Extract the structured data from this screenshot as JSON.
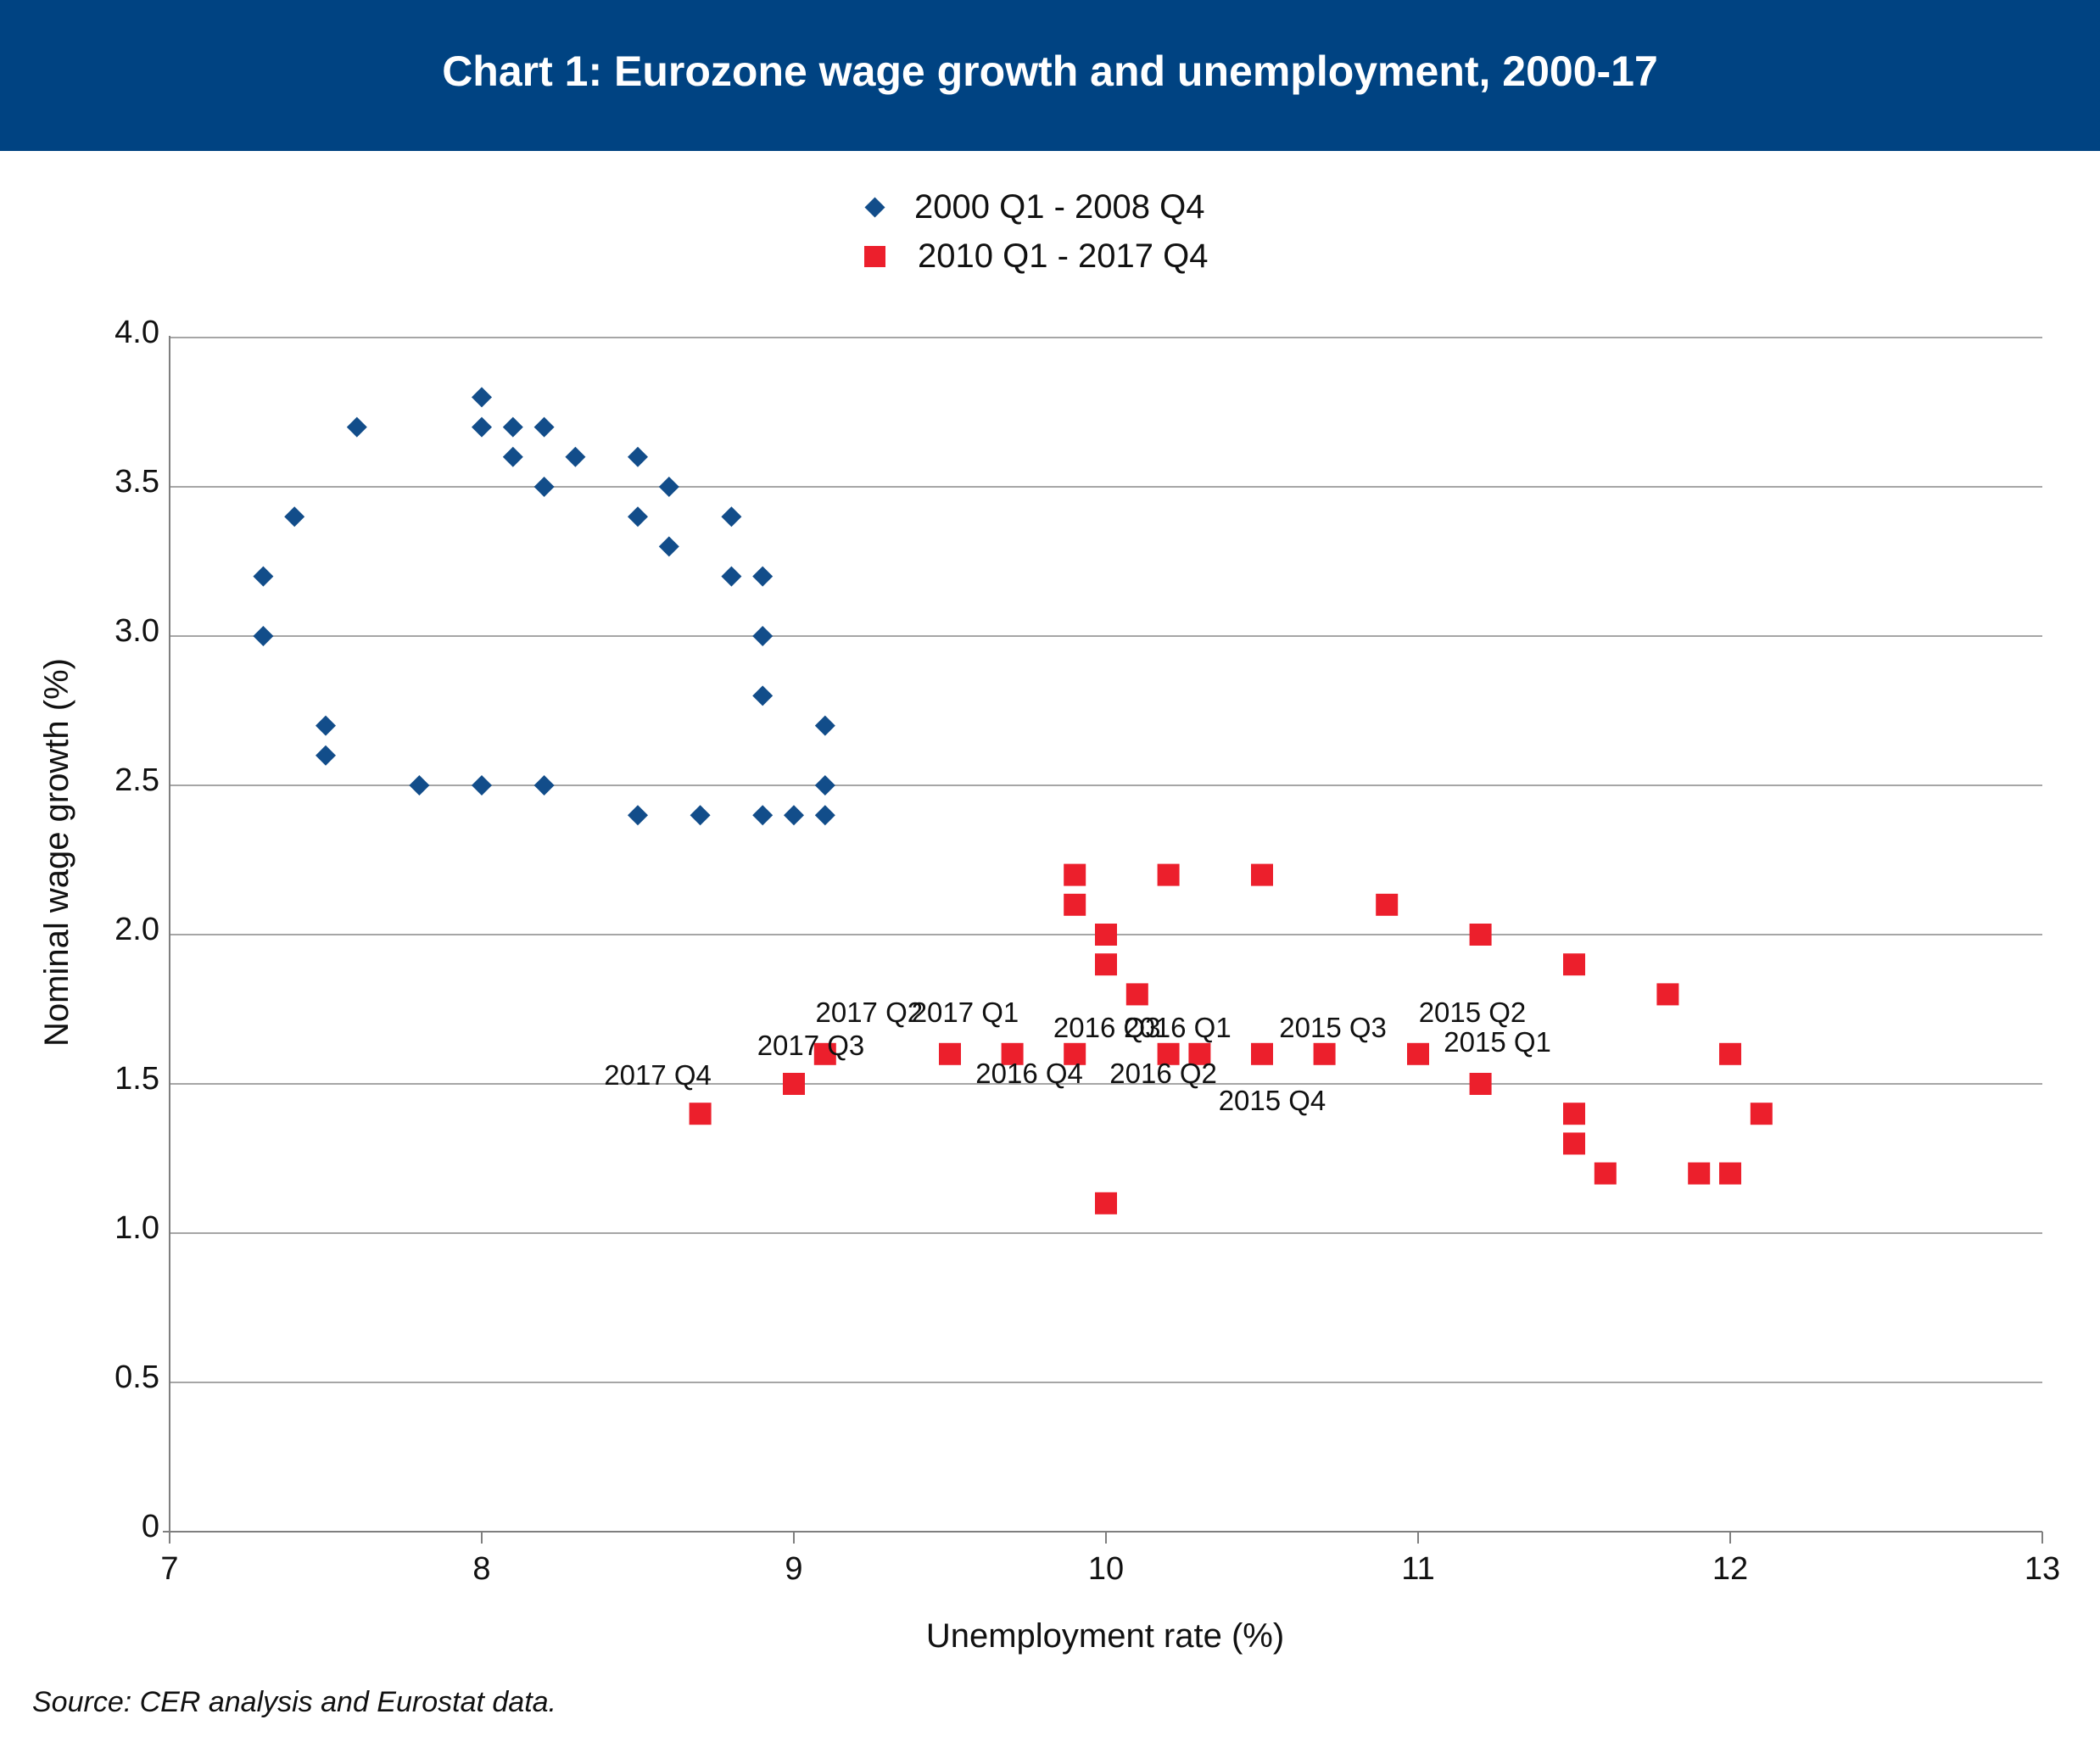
{
  "header": {
    "title": "Chart 1: Eurozone wage growth and unemployment, 2000-17"
  },
  "source": "Source: CER analysis and Eurostat data.",
  "colors": {
    "header_bg": "#004382",
    "series1": "#124d8a",
    "series2": "#ec1f2c",
    "grid": "#a6a6a6"
  },
  "chart_data": {
    "type": "scatter",
    "title": "Chart 1: Eurozone wage growth and unemployment, 2000-17",
    "xlabel": "Unemployment rate (%)",
    "ylabel": "Nominal wage growth (%)",
    "xlim": [
      7,
      13
    ],
    "ylim": [
      0,
      4.0
    ],
    "x_ticks": [
      "7",
      "8",
      "9",
      "10",
      "11",
      "12",
      "13"
    ],
    "y_ticks": [
      "0",
      "0.5",
      "1.0",
      "1.5",
      "2.0",
      "2.5",
      "3.0",
      "3.5",
      "4.0"
    ],
    "grid": "horizontal",
    "legend_position": "top-center",
    "series": [
      {
        "name": "2000 Q1 - 2008 Q4",
        "marker": "diamond",
        "color": "#124d8a",
        "points": [
          [
            7.3,
            3.2
          ],
          [
            7.3,
            3.0
          ],
          [
            7.4,
            3.4
          ],
          [
            7.5,
            2.7
          ],
          [
            7.5,
            2.6
          ],
          [
            7.6,
            3.7
          ],
          [
            7.8,
            2.5
          ],
          [
            8.0,
            3.8
          ],
          [
            8.0,
            3.7
          ],
          [
            8.0,
            2.5
          ],
          [
            8.1,
            3.7
          ],
          [
            8.1,
            3.6
          ],
          [
            8.2,
            3.7
          ],
          [
            8.2,
            3.5
          ],
          [
            8.2,
            2.5
          ],
          [
            8.3,
            3.6
          ],
          [
            8.5,
            3.6
          ],
          [
            8.5,
            3.4
          ],
          [
            8.5,
            2.4
          ],
          [
            8.6,
            3.5
          ],
          [
            8.6,
            3.3
          ],
          [
            8.7,
            2.4
          ],
          [
            8.8,
            3.4
          ],
          [
            8.8,
            3.2
          ],
          [
            8.9,
            3.2
          ],
          [
            8.9,
            3.0
          ],
          [
            8.9,
            2.8
          ],
          [
            8.9,
            2.4
          ],
          [
            9.0,
            2.4
          ],
          [
            9.1,
            2.7
          ],
          [
            9.1,
            2.5
          ],
          [
            9.1,
            2.4
          ]
        ]
      },
      {
        "name": "2010 Q1 - 2017 Q4",
        "marker": "square",
        "color": "#ec1f2c",
        "points": [
          [
            8.7,
            1.4
          ],
          [
            9.0,
            1.5
          ],
          [
            9.1,
            1.6
          ],
          [
            9.5,
            1.6
          ],
          [
            9.7,
            1.6
          ],
          [
            9.9,
            1.6
          ],
          [
            9.9,
            2.2
          ],
          [
            9.9,
            2.1
          ],
          [
            10.0,
            2.0
          ],
          [
            10.0,
            1.9
          ],
          [
            10.1,
            1.8
          ],
          [
            10.0,
            1.1
          ],
          [
            10.2,
            2.2
          ],
          [
            10.2,
            1.6
          ],
          [
            10.3,
            1.6
          ],
          [
            10.5,
            2.2
          ],
          [
            10.5,
            1.6
          ],
          [
            10.7,
            1.6
          ],
          [
            10.9,
            2.1
          ],
          [
            11.0,
            1.6
          ],
          [
            11.2,
            2.0
          ],
          [
            11.2,
            1.5
          ],
          [
            11.5,
            1.9
          ],
          [
            11.5,
            1.4
          ],
          [
            11.5,
            1.3
          ],
          [
            11.6,
            1.2
          ],
          [
            11.8,
            1.8
          ],
          [
            11.9,
            1.2
          ],
          [
            12.0,
            1.6
          ],
          [
            12.0,
            1.2
          ],
          [
            12.1,
            1.4
          ]
        ]
      }
    ],
    "annotations": [
      {
        "text": "2017 Q4",
        "x": 8.7,
        "y": 1.4
      },
      {
        "text": "2017 Q3",
        "x": 9.0,
        "y": 1.5
      },
      {
        "text": "2017 Q2",
        "x": 9.1,
        "y": 1.6
      },
      {
        "text": "2017 Q1",
        "x": 9.5,
        "y": 1.6
      },
      {
        "text": "2016 Q4",
        "x": 9.7,
        "y": 1.6
      },
      {
        "text": "2016 Q3",
        "x": 9.9,
        "y": 1.6
      },
      {
        "text": "2016 Q2",
        "x": 10.2,
        "y": 1.6
      },
      {
        "text": "2016 Q1",
        "x": 10.3,
        "y": 1.6
      },
      {
        "text": "2015 Q4",
        "x": 10.5,
        "y": 1.6
      },
      {
        "text": "2015 Q3",
        "x": 10.7,
        "y": 1.6
      },
      {
        "text": "2015 Q2",
        "x": 11.0,
        "y": 1.6
      },
      {
        "text": "2015 Q1",
        "x": 11.2,
        "y": 1.5
      }
    ]
  }
}
